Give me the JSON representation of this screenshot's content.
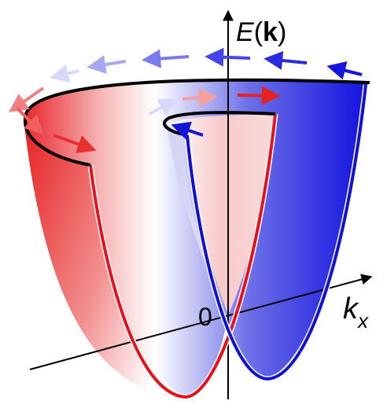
{
  "labels": {
    "energy_axis": [
      "E",
      "(",
      "k",
      ")"
    ],
    "momentum_axis": [
      "k",
      "x"
    ],
    "origin": "0"
  }
}
